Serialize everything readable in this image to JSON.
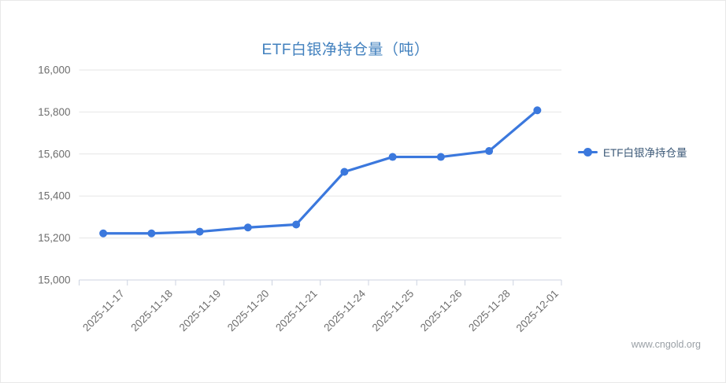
{
  "page": {
    "watermark": "www.cngold.org"
  },
  "chart_data": {
    "type": "line",
    "title": "ETF白银净持仓量（吨）",
    "categories": [
      "2025-11-17",
      "2025-11-18",
      "2025-11-19",
      "2025-11-20",
      "2025-11-21",
      "2025-11-24",
      "2025-11-25",
      "2025-11-26",
      "2025-11-28",
      "2025-12-01"
    ],
    "series": [
      {
        "name": "ETF白银净持仓量",
        "values": [
          15222,
          15222,
          15230,
          15250,
          15264,
          15515,
          15586,
          15586,
          15614,
          15808
        ]
      }
    ],
    "xlabel": "",
    "ylabel": "",
    "ylim": [
      15000,
      16000
    ],
    "yticks": [
      15000,
      15200,
      15400,
      15600,
      15800,
      16000
    ],
    "ytick_labels": [
      "15,000",
      "15,200",
      "15,400",
      "15,600",
      "15,800",
      "16,000"
    ],
    "grid": true,
    "legend_position": "right",
    "x_label_rotation_deg": -45,
    "colors": {
      "line": "#3b78dd",
      "title": "#4180be",
      "axis_label": "#6e6e6e",
      "legend_text": "#3d5a78",
      "gridline": "#e6e6e6",
      "axis_line": "#ccd3e0",
      "watermark": "#9aa0a6"
    }
  }
}
